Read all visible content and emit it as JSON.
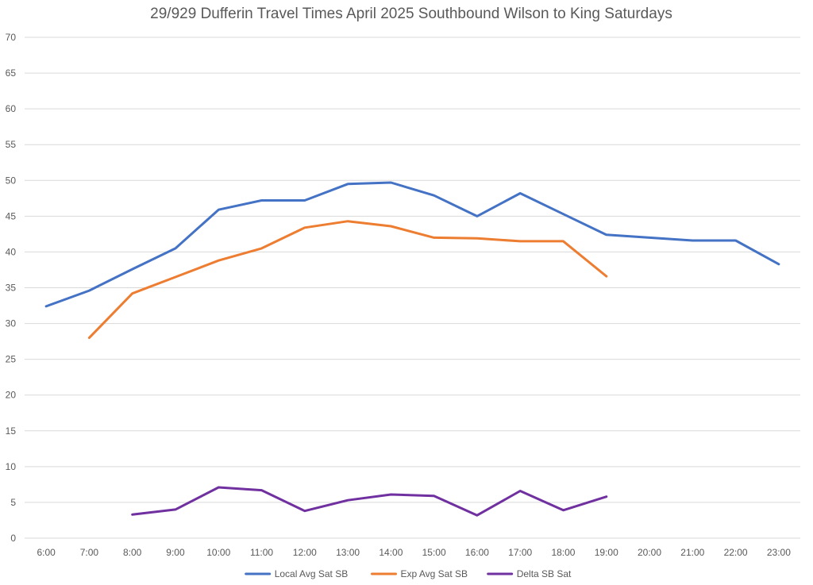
{
  "chart_data": {
    "type": "line",
    "title": "29/929 Dufferin Travel Times April 2025 Southbound Wilson to King Saturdays",
    "xlabel": "",
    "ylabel": "",
    "categories": [
      "6:00",
      "7:00",
      "8:00",
      "9:00",
      "10:00",
      "11:00",
      "12:00",
      "13:00",
      "14:00",
      "15:00",
      "16:00",
      "17:00",
      "18:00",
      "19:00",
      "20:00",
      "21:00",
      "22:00",
      "23:00"
    ],
    "ylim": [
      0,
      70
    ],
    "yticks": [
      "0",
      "5",
      "10",
      "15",
      "20",
      "25",
      "30",
      "35",
      "40",
      "45",
      "50",
      "55",
      "60",
      "65",
      "70"
    ],
    "grid": true,
    "legend_position": "bottom",
    "series": [
      {
        "name": "Local Avg Sat SB",
        "color": "#4472c4",
        "values": [
          32.4,
          34.6,
          37.6,
          40.5,
          45.9,
          47.2,
          47.2,
          49.5,
          49.7,
          47.9,
          45.0,
          48.2,
          45.3,
          42.4,
          42.0,
          41.6,
          41.6,
          38.3
        ]
      },
      {
        "name": "Exp Avg Sat SB",
        "color": "#ed7d31",
        "values": [
          null,
          28.0,
          34.2,
          36.5,
          38.8,
          40.5,
          43.4,
          44.3,
          43.6,
          42.0,
          41.9,
          41.5,
          41.5,
          36.6,
          null,
          null,
          null,
          null
        ]
      },
      {
        "name": "Delta SB Sat",
        "color": "#7030a0",
        "values": [
          null,
          null,
          3.3,
          4.0,
          7.1,
          6.7,
          3.8,
          5.3,
          6.1,
          5.9,
          3.2,
          6.6,
          3.9,
          5.8,
          null,
          null,
          null,
          null
        ]
      }
    ]
  }
}
